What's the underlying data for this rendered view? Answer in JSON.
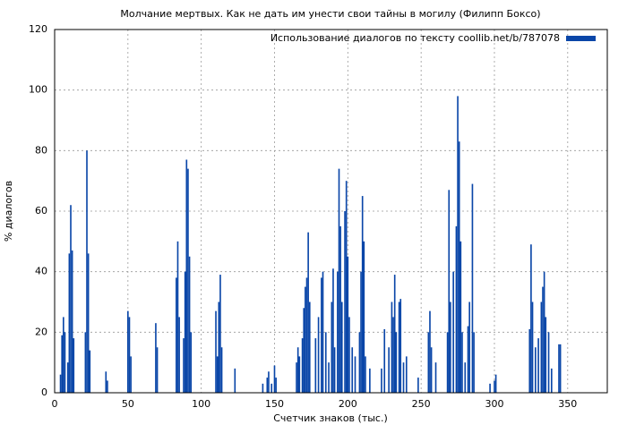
{
  "chart_data": {
    "type": "bar",
    "title": "Молчание мертвых. Как не дать им унести свои тайны в могилу (Филипп Боксо)",
    "x_label": "Счетчик знаков (тыс.)",
    "y_label": "% диалогов",
    "series": [
      {
        "name": "Использование диалогов по тексту coollib.net/b/787078",
        "color": "#0a46a8",
        "x": [
          4,
          5,
          6,
          7,
          9,
          10,
          11,
          12,
          13,
          21,
          22,
          23,
          24,
          35,
          36,
          50,
          51,
          52,
          69,
          70,
          83,
          84,
          85,
          88,
          89,
          90,
          91,
          92,
          93,
          110,
          111,
          112,
          113,
          114,
          123,
          142,
          145,
          146,
          148,
          150,
          151,
          165,
          166,
          167,
          169,
          170,
          171,
          172,
          173,
          174,
          178,
          180,
          182,
          183,
          185,
          187,
          189,
          190,
          191,
          193,
          194,
          195,
          196,
          198,
          199,
          200,
          201,
          203,
          205,
          208,
          209,
          210,
          211,
          212,
          215,
          223,
          225,
          228,
          230,
          231,
          232,
          233,
          235,
          236,
          238,
          240,
          248,
          255,
          256,
          257,
          260,
          268,
          269,
          270,
          272,
          274,
          275,
          276,
          277,
          278,
          280,
          282,
          283,
          285,
          286,
          297,
          300,
          301,
          324,
          325,
          326,
          328,
          330,
          332,
          333,
          334,
          335,
          337,
          339,
          344,
          345
        ],
        "values": [
          6,
          19,
          25,
          20,
          10,
          46,
          62,
          47,
          18,
          20,
          80,
          46,
          14,
          7,
          4,
          27,
          25,
          12,
          23,
          15,
          38,
          50,
          25,
          18,
          40,
          77,
          74,
          45,
          20,
          27,
          12,
          30,
          39,
          15,
          8,
          3,
          5,
          7,
          3,
          9,
          5,
          10,
          15,
          12,
          18,
          28,
          35,
          38,
          53,
          30,
          18,
          25,
          38,
          40,
          20,
          10,
          30,
          41,
          15,
          40,
          74,
          55,
          30,
          60,
          70,
          45,
          25,
          15,
          12,
          20,
          40,
          65,
          50,
          12,
          8,
          8,
          21,
          15,
          30,
          25,
          39,
          20,
          30,
          31,
          10,
          12,
          5,
          20,
          27,
          15,
          10,
          20,
          67,
          30,
          40,
          55,
          98,
          83,
          50,
          20,
          10,
          22,
          30,
          69,
          20,
          3,
          4,
          6,
          21,
          49,
          30,
          15,
          18,
          30,
          35,
          40,
          25,
          20,
          8,
          16,
          16
        ]
      }
    ],
    "xlim": [
      0,
      377
    ],
    "xticks": [
      0,
      50,
      100,
      150,
      200,
      250,
      300,
      350
    ],
    "ylim": [
      0,
      120
    ],
    "yticks": [
      0,
      20,
      40,
      60,
      80,
      100,
      120
    ],
    "grid": true,
    "legend": "top-right"
  }
}
